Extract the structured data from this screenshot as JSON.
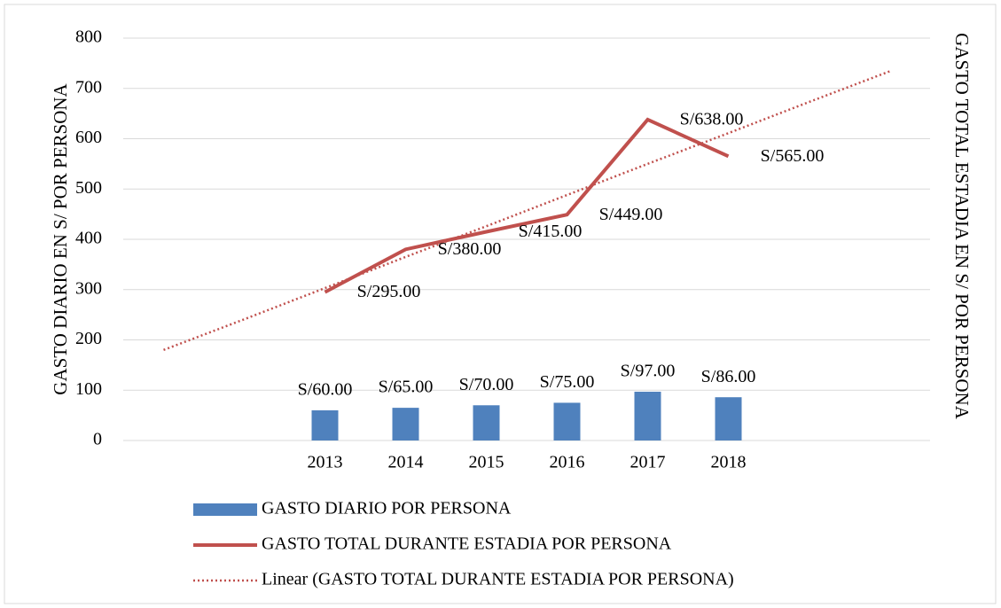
{
  "chart_data": {
    "type": "bar-line",
    "categories": [
      null,
      null,
      "2013",
      "2014",
      "2015",
      "2016",
      "2017",
      "2018",
      null,
      null
    ],
    "ylabel": "GASTO DIARIO EN S/ POR PERSONA",
    "y2label": "GASTO TOTAL ESTADIA EN S/ POR PERSONA",
    "ylim": [
      0,
      800
    ],
    "yticks": [
      0,
      100,
      200,
      300,
      400,
      500,
      600,
      700,
      800
    ],
    "grid": true,
    "series": [
      {
        "name": "GASTO DIARIO POR PERSONA",
        "type": "bar",
        "color": "#4f81bd",
        "values": [
          null,
          null,
          60,
          65,
          70,
          75,
          97,
          86,
          null,
          null
        ],
        "value_labels": [
          null,
          null,
          "S/60.00",
          "S/65.00",
          "S/70.00",
          "S/75.00",
          "S/97.00",
          "S/86.00",
          null,
          null
        ]
      },
      {
        "name": "GASTO TOTAL DURANTE ESTADIA POR PERSONA",
        "type": "line",
        "color": "#c0504d",
        "values": [
          null,
          null,
          295,
          380,
          415,
          449,
          638,
          565,
          null,
          null
        ],
        "value_labels": [
          null,
          null,
          "S/295.00",
          "S/380.00",
          "S/415.00",
          "S/449.00",
          "S/638.00",
          "S/565.00",
          null,
          null
        ]
      },
      {
        "name": "Linear (GASTO TOTAL DURANTE ESTADIA POR PERSONA)",
        "type": "trend",
        "color": "#c0504d",
        "values": [
          180,
          241,
          303,
          365,
          426,
          488,
          550,
          611,
          673,
          734
        ]
      }
    ]
  }
}
